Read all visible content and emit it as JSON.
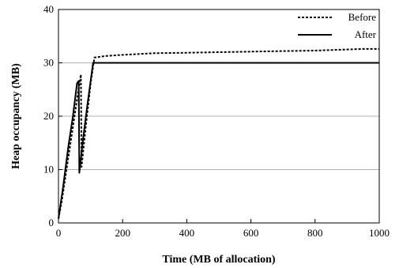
{
  "chart_data": {
    "type": "line",
    "title": "",
    "xlabel": "Time (MB of allocation)",
    "ylabel": "Heap occupancy (MB)",
    "xlim": [
      0,
      1000
    ],
    "ylim": [
      0,
      40
    ],
    "xticks": [
      0,
      200,
      400,
      600,
      800,
      1000
    ],
    "yticks": [
      0,
      10,
      20,
      30,
      40
    ],
    "grid": "horizontal",
    "legend_position": "top-right",
    "series": [
      {
        "name": "Before",
        "style": "dashed",
        "color": "#000000",
        "points": [
          [
            0,
            0.8
          ],
          [
            10,
            4
          ],
          [
            30,
            12
          ],
          [
            50,
            20
          ],
          [
            65,
            26
          ],
          [
            70,
            27.8
          ],
          [
            72,
            10.5
          ],
          [
            85,
            18
          ],
          [
            100,
            26
          ],
          [
            112,
            31
          ],
          [
            150,
            31.3
          ],
          [
            200,
            31.5
          ],
          [
            300,
            31.8
          ],
          [
            400,
            31.9
          ],
          [
            500,
            32.0
          ],
          [
            600,
            32.1
          ],
          [
            700,
            32.2
          ],
          [
            800,
            32.3
          ],
          [
            850,
            32.4
          ],
          [
            900,
            32.5
          ],
          [
            950,
            32.6
          ],
          [
            1000,
            32.6
          ]
        ]
      },
      {
        "name": "After",
        "style": "solid",
        "color": "#000000",
        "points": [
          [
            0,
            0.8
          ],
          [
            15,
            7
          ],
          [
            30,
            14
          ],
          [
            45,
            20
          ],
          [
            58,
            26.2
          ],
          [
            63,
            26.6
          ],
          [
            65,
            9.4
          ],
          [
            75,
            15
          ],
          [
            90,
            22
          ],
          [
            108,
            30
          ],
          [
            200,
            30
          ],
          [
            400,
            30
          ],
          [
            600,
            30
          ],
          [
            800,
            30
          ],
          [
            1000,
            30
          ]
        ]
      }
    ]
  }
}
